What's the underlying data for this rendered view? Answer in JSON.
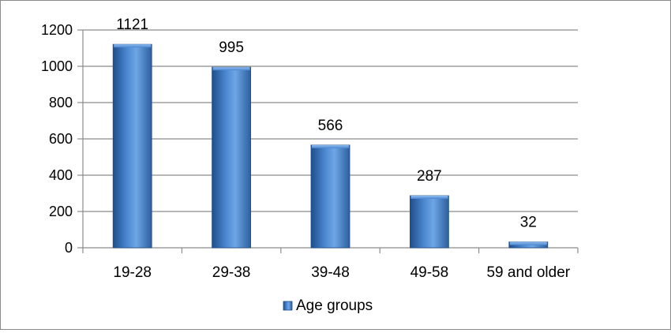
{
  "chart_data": {
    "type": "bar",
    "categories": [
      "19-28",
      "29-38",
      "39-48",
      "49-58",
      "59 and older"
    ],
    "series": [
      {
        "name": "Age groups",
        "values": [
          1121,
          995,
          566,
          287,
          32
        ]
      }
    ],
    "data_labels": [
      "1121",
      "995",
      "566",
      "287",
      "32"
    ],
    "yticks": [
      "0",
      "200",
      "400",
      "600",
      "800",
      "1000",
      "1200"
    ],
    "ylim": [
      0,
      1200
    ],
    "title": "",
    "xlabel": "",
    "ylabel": "",
    "grid": true,
    "legend_position": "bottom",
    "colors": {
      "bar": "#4a86cf",
      "bar_dark": "#1f4e8a",
      "bar_light": "#6ea6e6",
      "grid": "#8c8c8c",
      "axis": "#8c8c8c"
    }
  }
}
